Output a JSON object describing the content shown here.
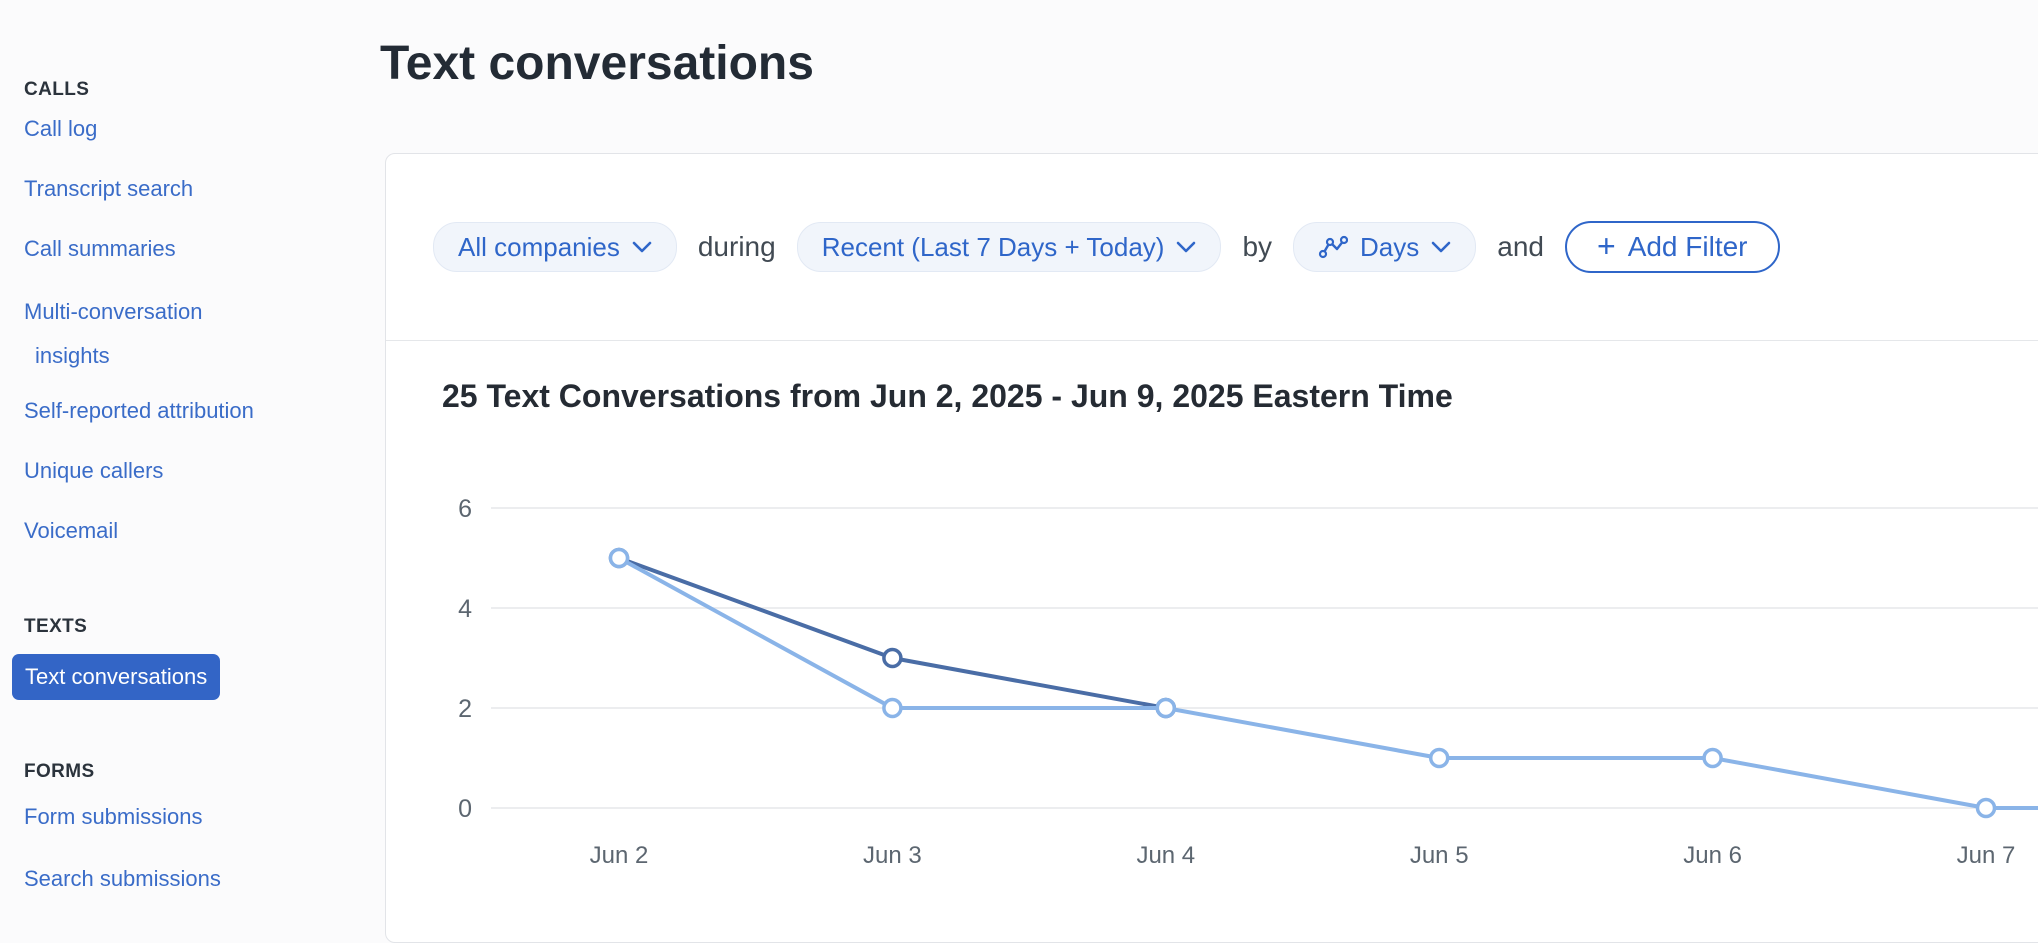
{
  "header": {
    "title": "Text conversations"
  },
  "sidebar": {
    "sections": [
      {
        "label": "CALLS",
        "items": [
          {
            "label": "Call log"
          },
          {
            "label": "Transcript search"
          },
          {
            "label": "Call summaries"
          },
          {
            "label": "Multi-conversation insights"
          },
          {
            "label": "Self-reported attribution"
          },
          {
            "label": "Unique callers"
          },
          {
            "label": "Voicemail"
          }
        ]
      },
      {
        "label": "TEXTS",
        "items": [
          {
            "label": "Text conversations",
            "active": true
          }
        ]
      },
      {
        "label": "FORMS",
        "items": [
          {
            "label": "Form submissions"
          },
          {
            "label": "Search submissions"
          }
        ]
      }
    ]
  },
  "filters": {
    "company": "All companies",
    "conj_during": "during",
    "date_range": "Recent (Last 7 Days + Today)",
    "conj_by": "by",
    "granularity": "Days",
    "conj_and": "and",
    "add_filter": {
      "plus": "+",
      "label": "Add Filter"
    },
    "icons": [
      "chevron-down-icon",
      "trend-icon",
      "plus-icon"
    ]
  },
  "chart": {
    "heading": "25 Text Conversations from Jun 2, 2025 - Jun 9, 2025 Eastern Time"
  },
  "chart_data": {
    "type": "line",
    "title": "25 Text Conversations from Jun 2, 2025 - Jun 9, 2025 Eastern Time",
    "categories": [
      "Jun 2",
      "Jun 3",
      "Jun 4",
      "Jun 5",
      "Jun 6",
      "Jun 7"
    ],
    "series": [
      {
        "name": "dark-blue-series",
        "color": "#4a6da6",
        "values": [
          5,
          3,
          2
        ],
        "continues_offscreen": false
      },
      {
        "name": "light-blue-series",
        "color": "#8ab4e8",
        "values": [
          5,
          2,
          2,
          1,
          1,
          0
        ],
        "continues_offscreen": true
      }
    ],
    "yticks": [
      0,
      2,
      4,
      6
    ],
    "ylim": [
      0,
      6
    ],
    "grid": "horizontal",
    "legend": "none",
    "markers": "open-circle"
  },
  "colors": {
    "accent_blue": "#2f66c9",
    "sidebar_link": "#3a6cc8",
    "active_item_bg": "#3365c6",
    "line_dark": "#4a6da6",
    "line_light": "#8ab4e8",
    "gridline": "#ecedef",
    "axis_label": "#5c6670",
    "card_border": "#e2e4e8",
    "heading_text": "#252b33"
  }
}
